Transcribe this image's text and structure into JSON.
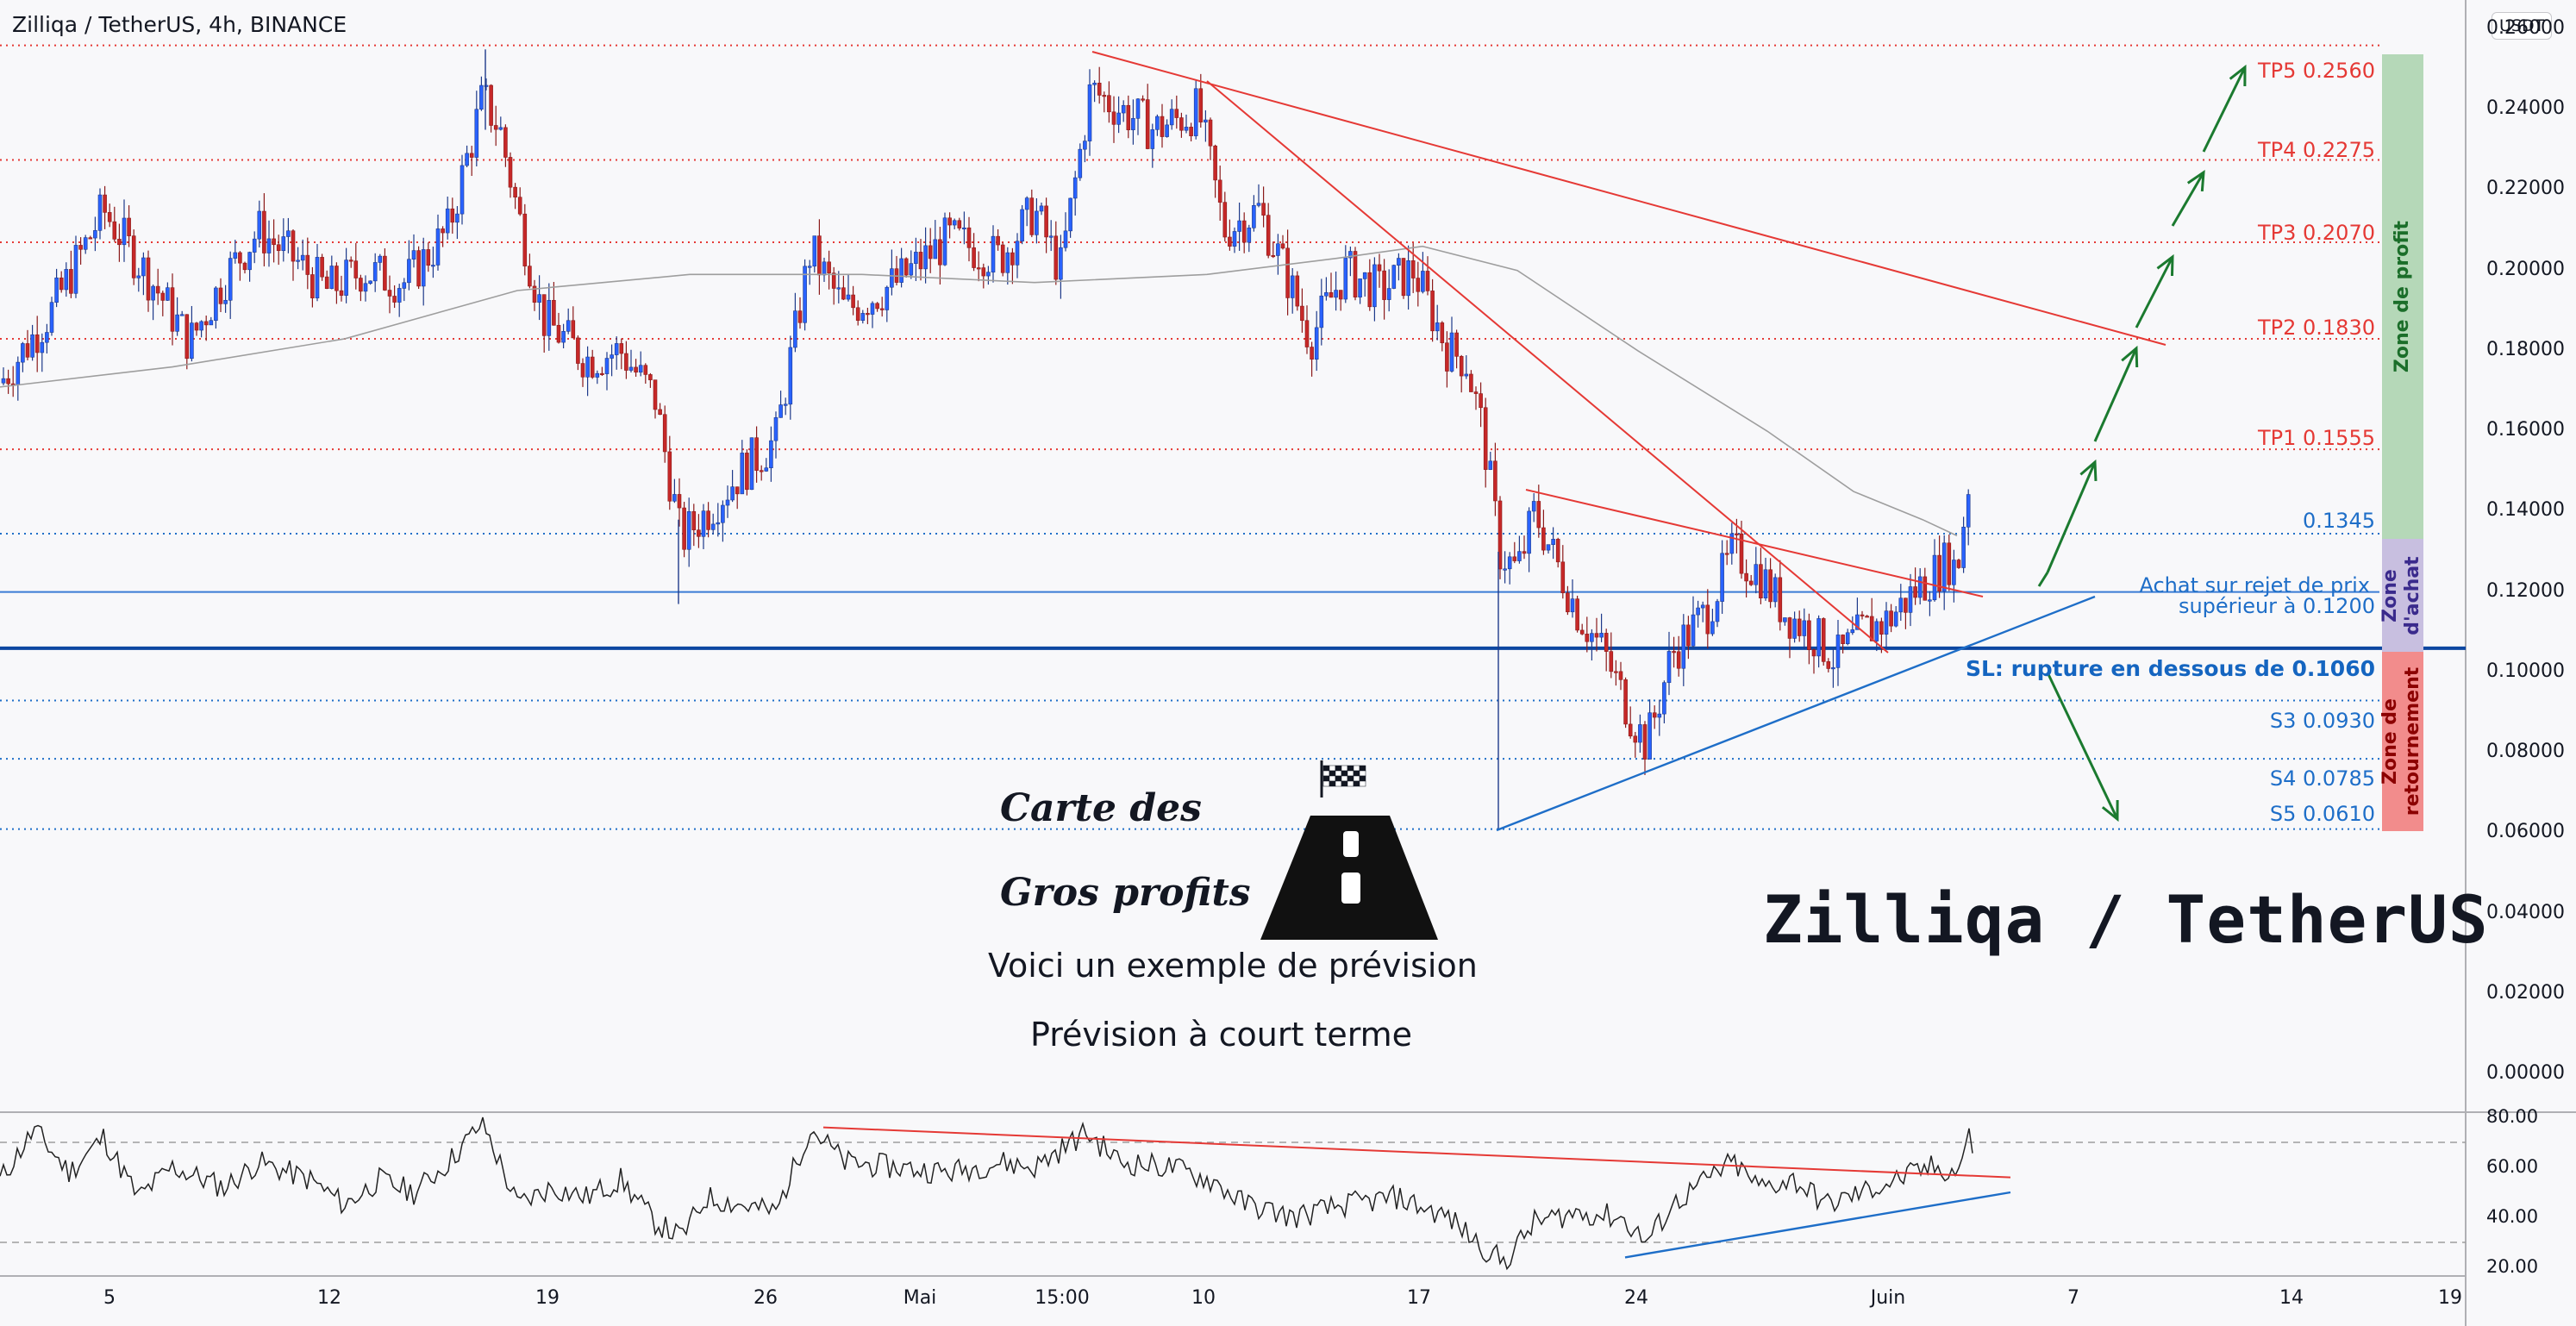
{
  "header": {
    "title": "Zilliqa / TetherUS, 4h, BINANCE",
    "currency_badge": "USDT"
  },
  "levels": {
    "tp5": "TP5 0.2560",
    "tp4": "TP4  0.2275",
    "tp3": "TP3 0.2070",
    "tp2": "TP2 0.1830",
    "tp1": "TP1 0.1555",
    "l1345": "0.1345",
    "buy_line1": "Achat sur rejet de prix",
    "buy_line2": "supérieur à 0.1200",
    "sl": "SL: rupture en dessous de 0.1060",
    "s3": "S3 0.0930",
    "s4": "S4 0.0785",
    "s5": "S5 0.0610"
  },
  "zones": {
    "profit": "Zone de profit",
    "buy_line1": "Zone",
    "buy_line2": "d'achat",
    "reversal_line1": "Zone de",
    "reversal_line2": "retournement",
    "profit_color": "#b5d8b8",
    "buy_color": "#c8bfe0",
    "reversal_color": "#f28c8c"
  },
  "branding": {
    "line1": "Carte des",
    "line2": "Gros profits",
    "note1": "Voici un exemple de prévision",
    "note2": "Prévision à court terme",
    "pair": "Zilliqa / TetherUS",
    "flag_icon": "checkered-flag-icon",
    "road_icon": "road-icon"
  },
  "chart_data": [
    {
      "type": "line",
      "series_kind": "candlestick",
      "ylim": [
        0.0,
        0.26
      ],
      "y_ticks": [
        "0.26000",
        "0.24000",
        "0.22000",
        "0.20000",
        "0.18000",
        "0.16000",
        "0.14000",
        "0.12000",
        "0.10000",
        "0.08000",
        "0.06000",
        "0.04000",
        "0.02000",
        "0.00000"
      ],
      "x_ticks": [
        "5",
        "12",
        "19",
        "26",
        "Mai",
        "15:00",
        "10",
        "17",
        "24",
        "Juin",
        "7",
        "14",
        "19"
      ],
      "approx_close_path": [
        {
          "x": "5",
          "y": 0.205
        },
        {
          "x": "12",
          "y": 0.215
        },
        {
          "x": "17",
          "y": 0.255
        },
        {
          "x": "19",
          "y": 0.195
        },
        {
          "x": "24",
          "y": 0.135
        },
        {
          "x": "26",
          "y": 0.145
        },
        {
          "x": "Mai",
          "y": 0.21
        },
        {
          "x": "15:00",
          "y": 0.255
        },
        {
          "x": "10",
          "y": 0.22
        },
        {
          "x": "17",
          "y": 0.175
        },
        {
          "x": "20",
          "y": 0.135
        },
        {
          "x": "24",
          "y": 0.085
        },
        {
          "x": "27",
          "y": 0.115
        },
        {
          "x": "Juin",
          "y": 0.125
        },
        {
          "x": "3",
          "y": 0.15
        }
      ],
      "horizontal_levels": [
        0.256,
        0.2275,
        0.207,
        0.183,
        0.1555,
        0.1345,
        0.12,
        0.106,
        0.093,
        0.0785,
        0.061
      ]
    },
    {
      "type": "line",
      "series_kind": "rsi",
      "ylim": [
        20,
        80
      ],
      "y_ticks": [
        "80.00",
        "60.00",
        "40.00",
        "20.00"
      ],
      "reference_levels": [
        70,
        30
      ],
      "approx_values": [
        {
          "x": "5",
          "y": 62
        },
        {
          "x": "12",
          "y": 55
        },
        {
          "x": "19",
          "y": 45
        },
        {
          "x": "26",
          "y": 42
        },
        {
          "x": "28",
          "y": 76
        },
        {
          "x": "Mai",
          "y": 62
        },
        {
          "x": "10",
          "y": 48
        },
        {
          "x": "17",
          "y": 35
        },
        {
          "x": "20",
          "y": 22
        },
        {
          "x": "24",
          "y": 45
        },
        {
          "x": "Juin",
          "y": 62
        },
        {
          "x": "3",
          "y": 73
        }
      ]
    }
  ]
}
